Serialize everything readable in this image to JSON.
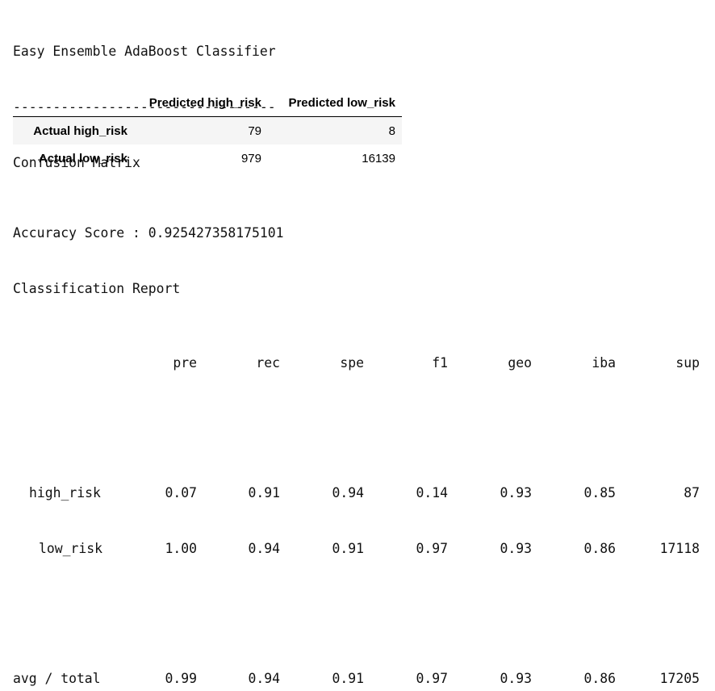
{
  "output": {
    "title": "Easy Ensemble AdaBoost Classifier",
    "separator": "---------------------------------",
    "cm_heading": "Confusion Matrix",
    "confusion_matrix": {
      "columns": [
        "",
        "Predicted high_risk",
        "Predicted low_risk"
      ],
      "rows": [
        {
          "label": "Actual high_risk",
          "values": [
            "79",
            "8"
          ]
        },
        {
          "label": "Actual low_risk",
          "values": [
            "979",
            "16139"
          ]
        }
      ]
    },
    "accuracy_line": "Accuracy Score : 0.925427358175101",
    "report_heading": "Classification Report",
    "report": {
      "columns": [
        "pre",
        "rec",
        "spe",
        "f1",
        "geo",
        "iba",
        "sup"
      ],
      "rows": [
        {
          "label": "high_risk",
          "values": [
            "0.07",
            "0.91",
            "0.94",
            "0.14",
            "0.93",
            "0.85",
            "87"
          ]
        },
        {
          "label": "low_risk",
          "values": [
            "1.00",
            "0.94",
            "0.91",
            "0.97",
            "0.93",
            "0.86",
            "17118"
          ]
        }
      ],
      "total": {
        "label": "avg / total",
        "values": [
          "0.99",
          "0.94",
          "0.91",
          "0.97",
          "0.93",
          "0.86",
          "17205"
        ]
      }
    }
  }
}
